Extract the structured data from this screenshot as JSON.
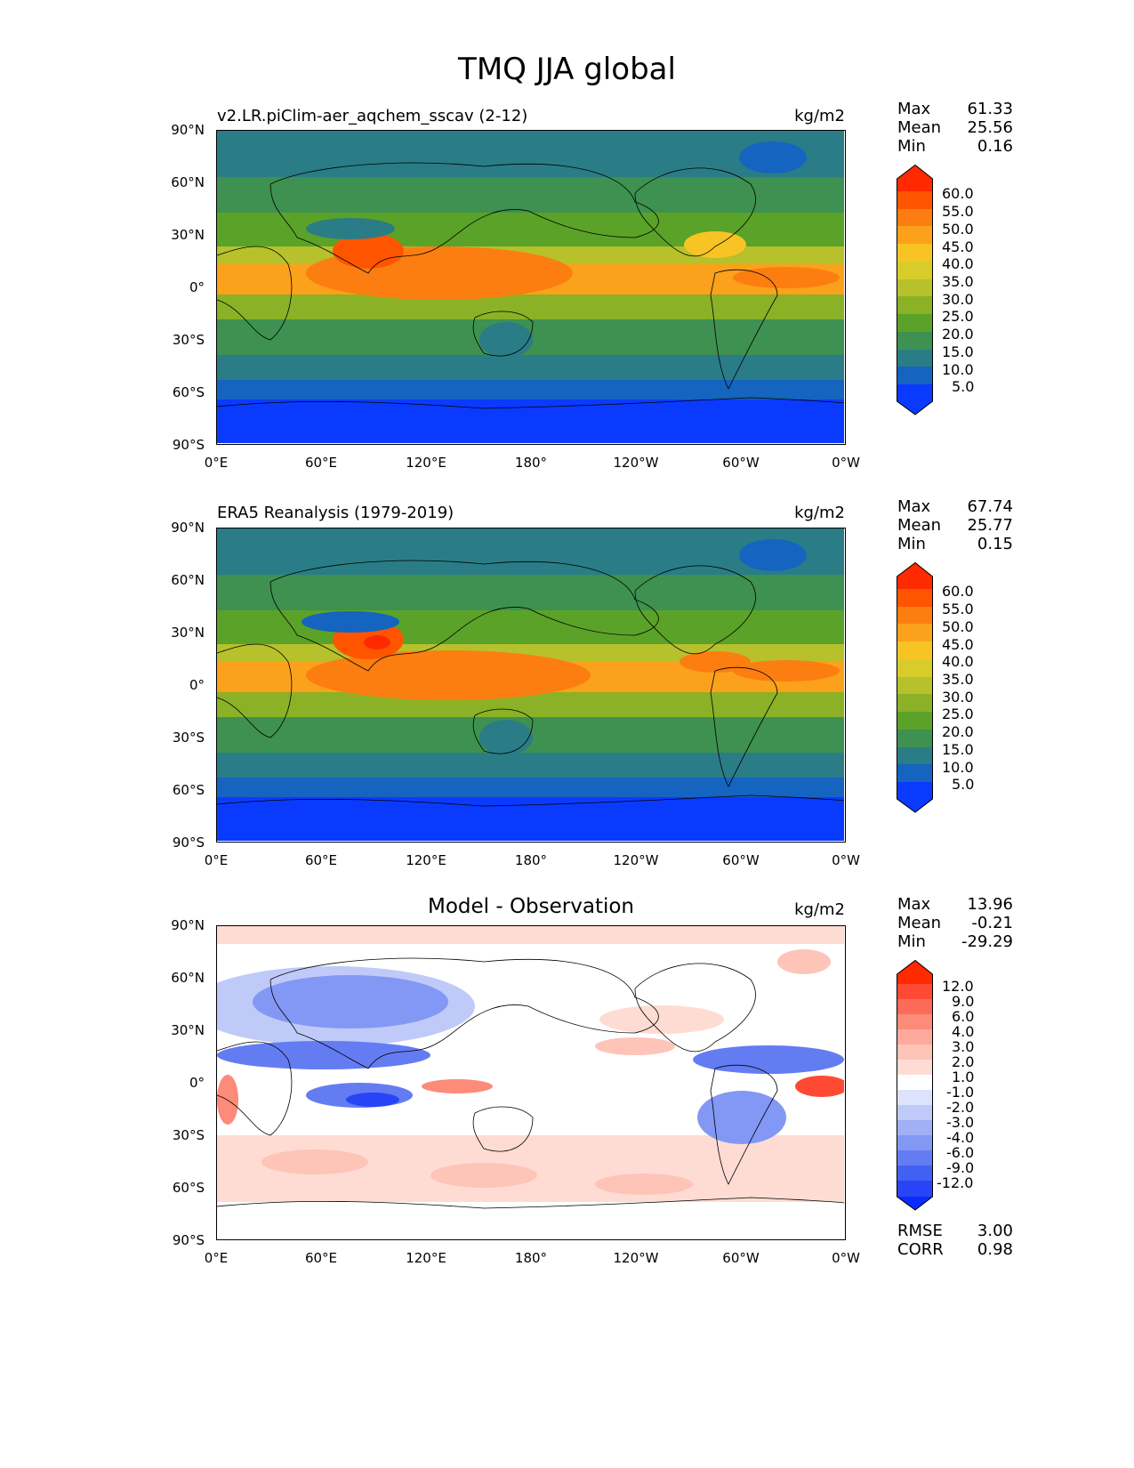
{
  "figure": {
    "title": "TMQ JJA global"
  },
  "lat_ticks": [
    "90°N",
    "60°N",
    "30°N",
    "0°",
    "30°S",
    "60°S",
    "90°S"
  ],
  "lon_ticks": [
    "0°E",
    "60°E",
    "120°E",
    "180°",
    "120°W",
    "60°W",
    "0°W"
  ],
  "panels": [
    {
      "title": "v2.LR.piClim-aer_aqchem_sscav (2-12)",
      "units": "kg/m2",
      "stats": {
        "max_label": "Max",
        "max": "61.33",
        "mean_label": "Mean",
        "mean": "25.56",
        "min_label": "Min",
        "min": "0.16"
      },
      "colorbar_labels": [
        "60.0",
        "55.0",
        "50.0",
        "45.0",
        "40.0",
        "35.0",
        "30.0",
        "25.0",
        "20.0",
        "15.0",
        "10.0",
        "5.0"
      ],
      "colors": {
        "c60": "#ff2a00",
        "c55": "#ff5500",
        "c50": "#fc7e10",
        "c45": "#fca11c",
        "c40": "#f8c424",
        "c35": "#d7cc2a",
        "c30": "#b6c12c",
        "c25": "#8bb126",
        "c20": "#5ba228",
        "c15": "#3e9150",
        "c10": "#2a7d86",
        "c5": "#1464c0",
        "c0": "#0b3aff"
      }
    },
    {
      "title": "ERA5 Reanalysis (1979-2019)",
      "units": "kg/m2",
      "stats": {
        "max_label": "Max",
        "max": "67.74",
        "mean_label": "Mean",
        "mean": "25.77",
        "min_label": "Min",
        "min": "0.15"
      },
      "colorbar_labels": [
        "60.0",
        "55.0",
        "50.0",
        "45.0",
        "40.0",
        "35.0",
        "30.0",
        "25.0",
        "20.0",
        "15.0",
        "10.0",
        "5.0"
      ]
    },
    {
      "title": "Model - Observation",
      "units": "kg/m2",
      "stats": {
        "max_label": "Max",
        "max": "13.96",
        "mean_label": "Mean",
        "mean": "-0.21",
        "min_label": "Min",
        "min": "-29.29"
      },
      "colorbar_labels": [
        "12.0",
        "9.0",
        "6.0",
        "4.0",
        "3.0",
        "2.0",
        "1.0",
        "-1.0",
        "-2.0",
        "-3.0",
        "-4.0",
        "-6.0",
        "-9.0",
        "-12.0"
      ],
      "metrics": {
        "rmse_label": "RMSE",
        "rmse": "3.00",
        "corr_label": "CORR",
        "corr": "0.98"
      },
      "colors": {
        "r_top": "#ff2a00",
        "r12": "#ff4a33",
        "r9": "#fb6b57",
        "r6": "#fc8b79",
        "r4": "#fdaa9c",
        "r3": "#fec4b8",
        "r2": "#fedcd4",
        "white": "#ffffff",
        "b1": "#dde3fd",
        "b2": "#bfcaf9",
        "b3": "#a1b0f6",
        "b4": "#8397f4",
        "b6": "#647cf2",
        "b9": "#4261f3",
        "b12": "#2745f7",
        "b_bot": "#0b2aff"
      }
    }
  ]
}
